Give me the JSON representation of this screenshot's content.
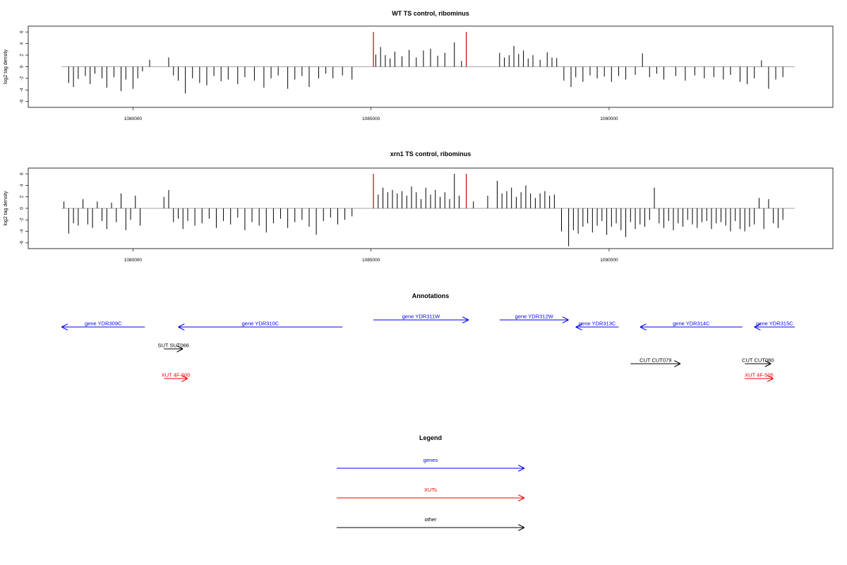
{
  "chart_data": [
    {
      "type": "bar",
      "title": "WT TS control, ribominus",
      "xlabel": "",
      "ylabel": "log2 tag density",
      "xlim": [
        1077800,
        1094700
      ],
      "ylim": [
        -7,
        7
      ],
      "x_ticks": [
        "1080000",
        "1085000",
        "1090000"
      ],
      "y_ticks": [
        "6",
        "4",
        "2",
        "0",
        "-2",
        "-4",
        "-6"
      ],
      "highlight_color": "#cc0000",
      "bar_color": "#000000",
      "highlight_x": [
        1085050,
        1087000
      ],
      "highlight_values": [
        6.0,
        6.0
      ],
      "x": [
        1078650,
        1078750,
        1078850,
        1079000,
        1079100,
        1079200,
        1079350,
        1079450,
        1079600,
        1079750,
        1079850,
        1080000,
        1080100,
        1080200,
        1080350,
        1080750,
        1080850,
        1080950,
        1081100,
        1081250,
        1081400,
        1081550,
        1081700,
        1081850,
        1082000,
        1082200,
        1082350,
        1082550,
        1082750,
        1082900,
        1083050,
        1083250,
        1083400,
        1083550,
        1083700,
        1083900,
        1084050,
        1084200,
        1084400,
        1084600,
        1085050,
        1085100,
        1085200,
        1085300,
        1085400,
        1085500,
        1085650,
        1085800,
        1085950,
        1086100,
        1086250,
        1086400,
        1086550,
        1086750,
        1086900,
        1087700,
        1087800,
        1087900,
        1088000,
        1088100,
        1088200,
        1088300,
        1088400,
        1088550,
        1088700,
        1088800,
        1088900,
        1089050,
        1089200,
        1089300,
        1089450,
        1089600,
        1089750,
        1089900,
        1090050,
        1090200,
        1090350,
        1090550,
        1090700,
        1090850,
        1091000,
        1091150,
        1091400,
        1091600,
        1091800,
        1092000,
        1092200,
        1092400,
        1092550,
        1092750,
        1092900,
        1093050,
        1093200,
        1093350,
        1093500,
        1093650
      ],
      "values": [
        -2.8,
        -3.5,
        -2.1,
        -1.6,
        -3.0,
        -1.2,
        -2.0,
        -3.6,
        -1.8,
        -4.2,
        -2.2,
        -3.8,
        -2.0,
        -0.8,
        1.2,
        1.6,
        -1.5,
        -2.4,
        -4.6,
        -2.0,
        -2.8,
        -3.2,
        -1.6,
        -2.5,
        -2.2,
        -3.0,
        -1.8,
        -2.4,
        -3.6,
        -2.0,
        -1.5,
        -3.8,
        -2.2,
        -1.6,
        -3.5,
        -2.0,
        -1.2,
        -2.0,
        -1.5,
        -2.2,
        3.2,
        2.1,
        3.4,
        2.0,
        1.4,
        2.6,
        1.8,
        2.9,
        1.6,
        2.8,
        3.1,
        1.9,
        2.4,
        4.2,
        1.0,
        2.4,
        1.6,
        2.0,
        3.6,
        2.2,
        2.8,
        1.4,
        2.0,
        1.2,
        2.5,
        1.6,
        1.5,
        -2.4,
        -3.5,
        -1.8,
        -2.6,
        -1.5,
        -2.0,
        -1.7,
        -2.6,
        -1.6,
        -2.2,
        -1.4,
        2.3,
        -1.8,
        -1.2,
        -2.2,
        -1.6,
        -2.4,
        -1.5,
        -2.0,
        -1.8,
        -2.2,
        -1.4,
        -2.6,
        -3.0,
        -2.0,
        1.1,
        -3.8,
        -2.2,
        -1.8
      ]
    },
    {
      "type": "bar",
      "title": "xrn1 TS control, ribominus",
      "xlabel": "",
      "ylabel": "log2 tag density",
      "xlim": [
        1077800,
        1094700
      ],
      "ylim": [
        -7,
        7
      ],
      "x_ticks": [
        "1080000",
        "1085000",
        "1090000"
      ],
      "y_ticks": [
        "6",
        "4",
        "2",
        "0",
        "-2",
        "-4",
        "-6"
      ],
      "highlight_color": "#cc0000",
      "bar_color": "#000000",
      "highlight_x": [
        1085050,
        1087000
      ],
      "highlight_values": [
        6.0,
        6.0
      ],
      "x": [
        1078550,
        1078650,
        1078750,
        1078850,
        1078950,
        1079050,
        1079150,
        1079250,
        1079350,
        1079450,
        1079550,
        1079650,
        1079750,
        1079850,
        1079950,
        1080050,
        1080150,
        1080650,
        1080750,
        1080850,
        1080950,
        1081050,
        1081150,
        1081300,
        1081450,
        1081600,
        1081750,
        1081900,
        1082050,
        1082200,
        1082350,
        1082500,
        1082650,
        1082800,
        1082950,
        1083100,
        1083250,
        1083400,
        1083550,
        1083700,
        1083850,
        1084000,
        1084150,
        1084300,
        1084450,
        1084600,
        1085050,
        1085150,
        1085250,
        1085350,
        1085450,
        1085550,
        1085650,
        1085750,
        1085850,
        1085950,
        1086050,
        1086150,
        1086250,
        1086350,
        1086450,
        1086550,
        1086650,
        1086750,
        1086850,
        1087150,
        1087450,
        1087650,
        1087750,
        1087850,
        1087950,
        1088050,
        1088150,
        1088250,
        1088350,
        1088450,
        1088550,
        1088650,
        1088750,
        1088850,
        1089000,
        1089150,
        1089250,
        1089350,
        1089450,
        1089550,
        1089650,
        1089750,
        1089850,
        1089950,
        1090050,
        1090150,
        1090250,
        1090350,
        1090450,
        1090550,
        1090650,
        1090750,
        1090850,
        1090950,
        1091050,
        1091150,
        1091250,
        1091350,
        1091450,
        1091550,
        1091650,
        1091750,
        1091850,
        1091950,
        1092050,
        1092150,
        1092250,
        1092350,
        1092450,
        1092550,
        1092650,
        1092750,
        1092850,
        1092950,
        1093050,
        1093150,
        1093250,
        1093350,
        1093450,
        1093550,
        1093650
      ],
      "values": [
        1.2,
        -4.4,
        -2.6,
        -3.0,
        1.6,
        -2.8,
        -3.4,
        1.2,
        -2.2,
        -3.6,
        1.0,
        -2.4,
        2.6,
        -3.8,
        -2.0,
        2.2,
        -3.0,
        2.0,
        3.2,
        -2.4,
        -1.8,
        -3.6,
        -2.2,
        -3.0,
        -2.6,
        -1.8,
        -3.4,
        -2.2,
        -2.8,
        -1.6,
        -3.8,
        -2.4,
        -3.0,
        -4.2,
        -2.6,
        -1.8,
        -3.4,
        -2.4,
        -2.0,
        -3.2,
        -4.6,
        -2.2,
        -1.6,
        -2.8,
        -2.0,
        -1.4,
        3.0,
        2.4,
        3.6,
        2.8,
        3.2,
        2.6,
        3.0,
        2.2,
        3.8,
        2.8,
        1.6,
        3.6,
        2.4,
        3.2,
        2.0,
        2.8,
        1.6,
        6.0,
        2.2,
        1.2,
        2.2,
        4.8,
        2.6,
        3.0,
        3.6,
        2.0,
        2.8,
        4.0,
        2.6,
        1.8,
        2.6,
        3.0,
        2.2,
        2.4,
        -4.0,
        -6.6,
        -3.8,
        -4.4,
        -3.2,
        -2.6,
        -4.2,
        -3.0,
        -2.2,
        -4.6,
        -3.2,
        -2.6,
        -3.8,
        -5.0,
        -2.4,
        -3.6,
        -2.8,
        -3.2,
        -2.0,
        3.6,
        -2.6,
        -3.4,
        -2.2,
        -3.8,
        -2.6,
        -3.2,
        -2.0,
        -2.8,
        -3.4,
        -2.4,
        -2.2,
        -3.6,
        -2.6,
        -2.4,
        -3.0,
        -4.0,
        -2.2,
        -3.6,
        -4.0,
        -3.2,
        -2.8,
        1.8,
        -3.6,
        1.6,
        -2.6,
        -3.4,
        -2.0
      ]
    }
  ],
  "annotations": {
    "title": "Annotations",
    "features": [
      {
        "label": "gene YDR309C",
        "color": "#0000ee",
        "dir": "left",
        "from": 1078500,
        "to": 1080250,
        "row": 0
      },
      {
        "label": "gene YDR310C",
        "color": "#0000ee",
        "dir": "left",
        "from": 1080950,
        "to": 1084400,
        "row": 0
      },
      {
        "label": "gene YDR311W",
        "color": "#0000ee",
        "dir": "right",
        "from": 1085050,
        "to": 1087050,
        "row": 1
      },
      {
        "label": "gene YDR312W",
        "color": "#0000ee",
        "dir": "right",
        "from": 1087700,
        "to": 1089150,
        "row": 1
      },
      {
        "label": "gene YDR313C",
        "color": "#0000ee",
        "dir": "left",
        "from": 1089300,
        "to": 1090200,
        "row": 0
      },
      {
        "label": "gene YDR314C",
        "color": "#0000ee",
        "dir": "left",
        "from": 1090650,
        "to": 1092800,
        "row": 0
      },
      {
        "label": "gene YDR315C",
        "color": "#0000ee",
        "dir": "left",
        "from": 1093050,
        "to": 1093900,
        "row": 0
      },
      {
        "label": "SUT SUT066",
        "color": "#000000",
        "dir": "right",
        "from": 1080650,
        "to": 1081050,
        "row": 2
      },
      {
        "label": "CUT CUT079",
        "color": "#000000",
        "dir": "right",
        "from": 1090450,
        "to": 1091500,
        "row": 3
      },
      {
        "label": "CUT CUT080",
        "color": "#000000",
        "dir": "right",
        "from": 1092850,
        "to": 1093400,
        "row": 3
      },
      {
        "label": "XUT 4F-500",
        "color": "#ee0000",
        "dir": "right",
        "from": 1080650,
        "to": 1081150,
        "row": 4
      },
      {
        "label": "XUT 4F-505",
        "color": "#ee0000",
        "dir": "right",
        "from": 1092850,
        "to": 1093450,
        "row": 4
      }
    ]
  },
  "legend": {
    "title": "Legend",
    "items": [
      {
        "label": "genes",
        "color": "#0000ee"
      },
      {
        "label": "XUTs",
        "color": "#ee0000"
      },
      {
        "label": "other",
        "color": "#000000"
      }
    ]
  }
}
